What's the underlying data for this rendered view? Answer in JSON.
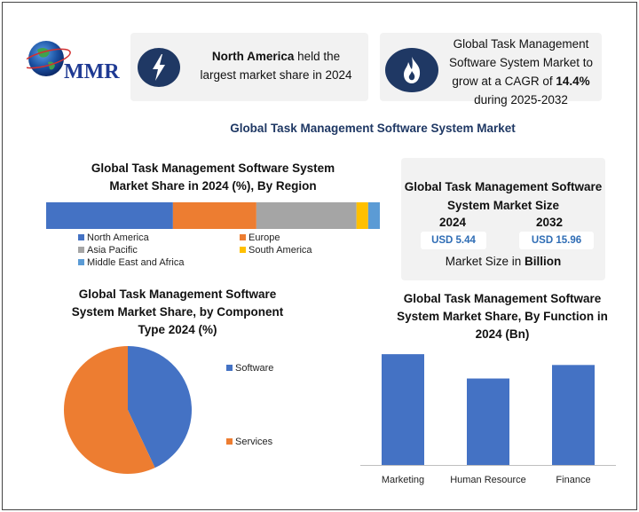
{
  "logo": {
    "text": "MMR"
  },
  "cards": {
    "region": {
      "icon": "lightning-bolt-icon",
      "bold": "North America",
      "text1": " held the",
      "text2": "largest market share in 2024"
    },
    "cagr": {
      "icon": "flame-icon",
      "line1": "Global Task Management",
      "line2": "Software System Market to",
      "line3_pre": "grow at a CAGR of ",
      "line3_bold": "14.4%",
      "line4": "during 2025-2032"
    }
  },
  "main_title": "Global Task Management Software System Market",
  "market_size": {
    "title_line1": "Global Task Management Software",
    "title_line2": "System Market Size",
    "year1": "2024",
    "year2": "2032",
    "value1": "USD 5.44",
    "value2": "USD 15.96",
    "foot_pre": "Market Size in ",
    "foot_bold": "Billion"
  },
  "colors": {
    "north_america": "#4472c4",
    "europe": "#ed7d31",
    "asia_pacific": "#a5a5a5",
    "south_america": "#ffc000",
    "mea": "#5b9bd5",
    "bar": "#4472c4",
    "dark_blue": "#1f3864"
  },
  "chart_data": [
    {
      "type": "bar",
      "stacked": true,
      "orientation": "horizontal",
      "title_line1": "Global Task Management Software System",
      "title_line2": "Market Share in 2024 (%), By Region",
      "series": [
        {
          "name": "North America",
          "value": 38
        },
        {
          "name": "Europe",
          "value": 25
        },
        {
          "name": "Asia Pacific",
          "value": 30
        },
        {
          "name": "South America",
          "value": 3.5
        },
        {
          "name": "Middle East and Africa",
          "value": 3.5
        }
      ],
      "legend_position": "bottom"
    },
    {
      "type": "pie",
      "title_line1": "Global Task Management Software",
      "title_line2": "System  Market Share, by Component",
      "title_line3": "Type 2024 (%)",
      "labels": [
        "Software",
        "Services"
      ],
      "values": [
        43,
        57
      ],
      "legend_position": "right"
    },
    {
      "type": "bar",
      "title_line1": "Global Task Management Software",
      "title_line2": "System Market Share, By Function in",
      "title_line3": "2024 (Bn)",
      "categories": [
        "Marketing",
        "Human Resource",
        "Finance"
      ],
      "values": [
        2.05,
        1.6,
        1.85
      ],
      "ylim": [
        0,
        2.2
      ],
      "grid": false
    }
  ]
}
